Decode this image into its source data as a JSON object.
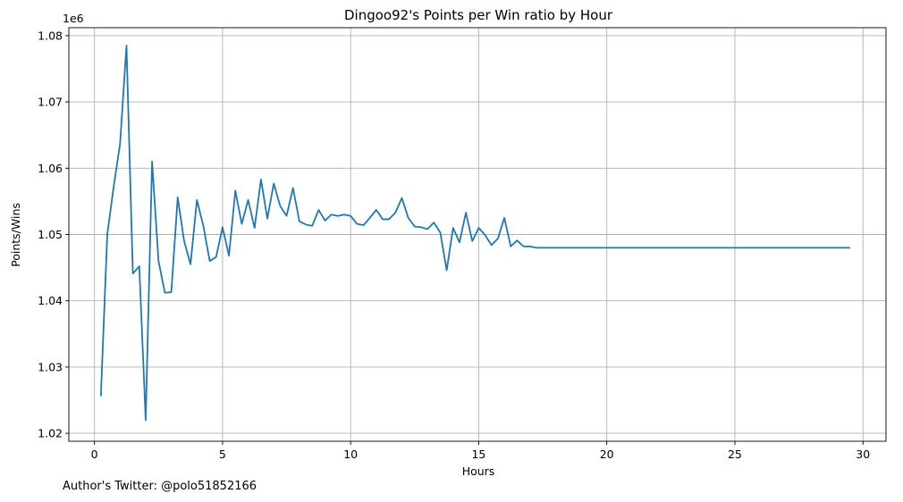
{
  "chart_data": {
    "type": "line",
    "title": "Dingoo92's Points per Win ratio by Hour",
    "xlabel": "Hours",
    "ylabel": "Points/Wins",
    "y_offset_label": "1e6",
    "xlim": [
      -1.0,
      30.9
    ],
    "ylim": [
      1.0188,
      1.0812
    ],
    "x_ticks": [
      0,
      5,
      10,
      15,
      20,
      25,
      30
    ],
    "y_ticks": [
      1.02,
      1.03,
      1.04,
      1.05,
      1.06,
      1.07,
      1.08
    ],
    "grid": true,
    "line_color": "#1f77b4",
    "series": [
      {
        "x": [
          0.25,
          0.5,
          0.75,
          1.0,
          1.25,
          1.5,
          1.75,
          2.0,
          2.25,
          2.5,
          2.75,
          3.0,
          3.25,
          3.5,
          3.75,
          4.0,
          4.25,
          4.5,
          4.75,
          5.0,
          5.25,
          5.5,
          5.75,
          6.0,
          6.25,
          6.5,
          6.75,
          7.0,
          7.25,
          7.5,
          7.75,
          8.0,
          8.25,
          8.5,
          8.75,
          9.0,
          9.25,
          9.5,
          9.75,
          10.0,
          10.25,
          10.5,
          10.75,
          11.0,
          11.25,
          11.5,
          11.75,
          12.0,
          12.25,
          12.5,
          12.75,
          13.0,
          13.25,
          13.5,
          13.75,
          14.0,
          14.25,
          14.5,
          14.75,
          15.0,
          15.25,
          15.5,
          15.75,
          16.0,
          16.25,
          16.5,
          16.75,
          17.0,
          17.25,
          17.5,
          17.75,
          18.0,
          19.0,
          20.0,
          21.0,
          22.0,
          23.0,
          24.0,
          25.0,
          26.0,
          27.0,
          28.0,
          29.0,
          29.5
        ],
        "values": [
          1.0256,
          1.05,
          1.0572,
          1.0637,
          1.0785,
          1.0441,
          1.0452,
          1.022,
          1.061,
          1.046,
          1.0412,
          1.0413,
          1.0556,
          1.049,
          1.0455,
          1.0552,
          1.0513,
          1.046,
          1.0466,
          1.0511,
          1.0468,
          1.0566,
          1.0516,
          1.0552,
          1.051,
          1.0583,
          1.0524,
          1.0577,
          1.0543,
          1.0528,
          1.057,
          1.052,
          1.0515,
          1.0513,
          1.0537,
          1.0521,
          1.053,
          1.0528,
          1.053,
          1.0528,
          1.0516,
          1.0514,
          1.0525,
          1.0537,
          1.0523,
          1.0523,
          1.0533,
          1.0555,
          1.0525,
          1.0512,
          1.0511,
          1.0508,
          1.0518,
          1.0503,
          1.0446,
          1.051,
          1.0488,
          1.0533,
          1.049,
          1.051,
          1.0499,
          1.0484,
          1.0494,
          1.0525,
          1.0482,
          1.0491,
          1.0482,
          1.0482,
          1.048,
          1.048,
          1.048,
          1.048,
          1.048,
          1.048,
          1.048,
          1.048,
          1.048,
          1.048,
          1.048,
          1.048,
          1.048,
          1.048,
          1.048,
          1.048
        ]
      }
    ]
  },
  "footer": {
    "credit": "Author's Twitter: @polo51852166"
  }
}
